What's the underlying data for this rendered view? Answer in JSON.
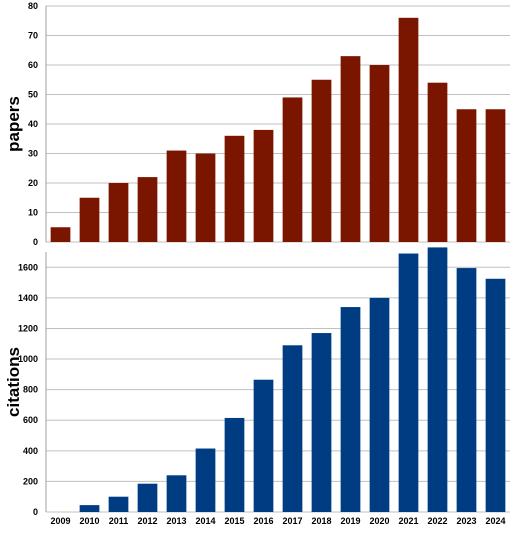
{
  "chart_data": [
    {
      "type": "bar",
      "categories": [
        "2009",
        "2010",
        "2011",
        "2012",
        "2013",
        "2014",
        "2015",
        "2016",
        "2017",
        "2018",
        "2019",
        "2020",
        "2021",
        "2022",
        "2023",
        "2024"
      ],
      "values": [
        5,
        15,
        20,
        22,
        31,
        30,
        36,
        38,
        49,
        55,
        63,
        60,
        76,
        54,
        45,
        45
      ],
      "ylabel": "papers",
      "xlabel": "",
      "ylim": [
        0,
        80
      ],
      "yticks": [
        0,
        10,
        20,
        30,
        40,
        50,
        60,
        70,
        80
      ],
      "color": "#7a1500",
      "grid": true,
      "show_xticklabels": false
    },
    {
      "type": "bar",
      "categories": [
        "2009",
        "2010",
        "2011",
        "2012",
        "2013",
        "2014",
        "2015",
        "2016",
        "2017",
        "2018",
        "2019",
        "2020",
        "2021",
        "2022",
        "2023",
        "2024"
      ],
      "values": [
        0,
        45,
        100,
        185,
        240,
        415,
        615,
        865,
        1090,
        1170,
        1340,
        1400,
        1690,
        1730,
        1595,
        1525
      ],
      "ylabel": "citations",
      "xlabel": "",
      "ylim": [
        0,
        1700
      ],
      "yticks": [
        0,
        200,
        400,
        600,
        800,
        1000,
        1200,
        1400,
        1600
      ],
      "color": "#003c82",
      "grid": true,
      "show_xticklabels": true
    }
  ]
}
